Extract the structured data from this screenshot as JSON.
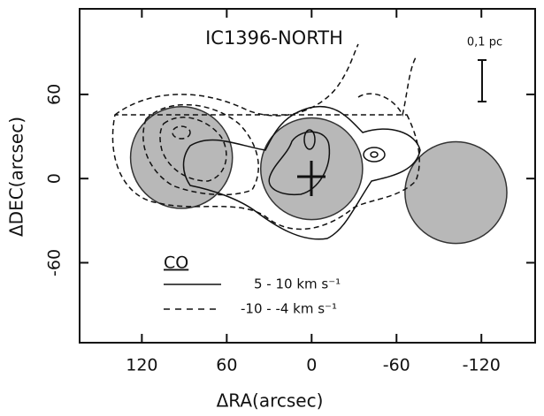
{
  "chart_data": {
    "type": "contour",
    "title": "IC1396-NORTH",
    "x_label": "ΔRA(arcsec)",
    "y_label": "ΔDEC(arcsec)",
    "xlim": [
      164,
      -158
    ],
    "ylim": [
      -117,
      121
    ],
    "xticks": [
      120,
      60,
      0,
      -60,
      -120
    ],
    "yticks": [
      -60,
      0,
      60
    ],
    "scale_bar": "0,1 pc",
    "legend_title": "CO",
    "series": [
      {
        "name": "5 - 10 km s⁻¹",
        "dash": "solid"
      },
      {
        "name": "-10 - -4 km s⁻¹",
        "dash": "dashed"
      }
    ],
    "beams": {
      "x": [
        92,
        0,
        -102
      ],
      "y": [
        15,
        7,
        -10
      ],
      "radius": 36,
      "color": "#b8b8b8"
    }
  }
}
